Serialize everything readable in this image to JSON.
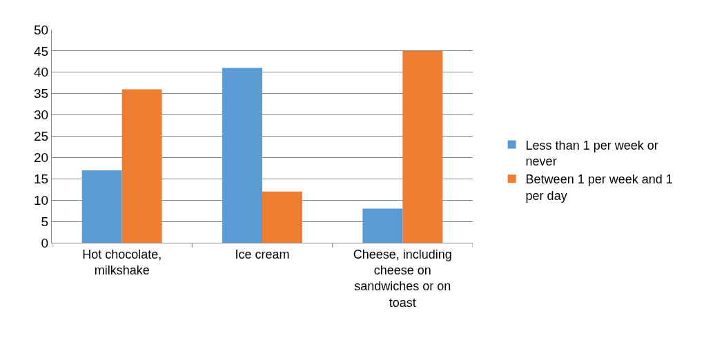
{
  "chart_data": {
    "type": "bar",
    "categories": [
      "Hot chocolate, milkshake",
      "Ice cream",
      "Cheese, including cheese on sandwiches or on toast"
    ],
    "series": [
      {
        "name": "Less than 1 per week or never",
        "color": "#5b9bd5",
        "values": [
          17,
          41,
          8
        ]
      },
      {
        "name": "Between 1 per week and 1 per day",
        "color": "#ed7d31",
        "values": [
          36,
          12,
          45
        ]
      }
    ],
    "ylim": [
      0,
      50
    ],
    "yticks": [
      0,
      5,
      10,
      15,
      20,
      25,
      30,
      35,
      40,
      45,
      50
    ],
    "grid": "y",
    "legend": "right"
  }
}
